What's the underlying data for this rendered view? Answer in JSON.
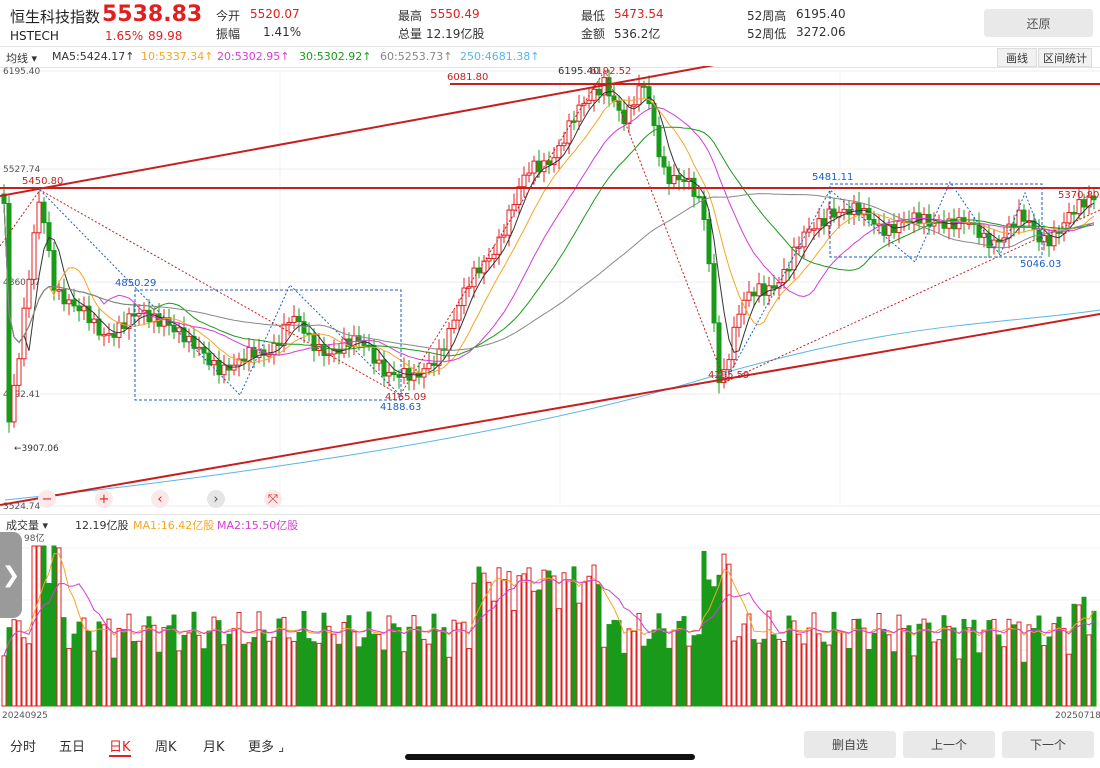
{
  "header": {
    "name": "恒生科技指数",
    "price": "5538.83",
    "code": "HSTECH",
    "change_pct": "1.65%",
    "change_val": "89.98",
    "stats": [
      {
        "label": "今开",
        "value": "5520.07",
        "color": "#e02020"
      },
      {
        "label": "最高",
        "value": "5550.49",
        "color": "#e02020"
      },
      {
        "label": "最低",
        "value": "5473.54",
        "color": "#e02020"
      },
      {
        "label": "52周高",
        "value": "6195.40",
        "color": "#333333"
      },
      {
        "label": "振幅",
        "value": "1.41%",
        "color": "#333333"
      },
      {
        "label": "总量",
        "value": "12.19亿股",
        "color": "#333333"
      },
      {
        "label": "金额",
        "value": "536.2亿",
        "color": "#333333"
      },
      {
        "label": "52周低",
        "value": "3272.06",
        "color": "#333333"
      }
    ],
    "restore_button": "还原"
  },
  "ma_bar": {
    "dropdown": "均线",
    "ma5": "MA5:5424.17↑",
    "ma10": "10:5337.34↑",
    "ma20": "20:5302.95↑",
    "ma30": "30:5302.92↑",
    "ma60": "60:5253.73↑",
    "ma250": "250:4681.38↑",
    "draw_button": "画线",
    "range_button": "区间统计"
  },
  "colors": {
    "up": "#e02020",
    "down": "#1a9a1a",
    "ma5": "#333333",
    "ma10": "#f5a623",
    "ma20": "#d63bd6",
    "ma30": "#1a9a1a",
    "ma60": "#888888",
    "ma250": "#5ab4e6",
    "annotation_blue": "#1a5fc8",
    "trendline": "#c81e1e"
  },
  "price_chart": {
    "y_labels": [
      "6195.40",
      "5527.74",
      "4860.07",
      "4192.41",
      "3524.74"
    ],
    "extreme_labels": {
      "high": "6195.40",
      "low_left": "3907.06"
    },
    "annotations": [
      "6081.80",
      "6195.40",
      "6192.52",
      "5450.80",
      "4850.29",
      "4165.09",
      "4188.63",
      "4295.59",
      "5481.11",
      "5046.03",
      "5370.80"
    ]
  },
  "volume_bar": {
    "dropdown": "成交量",
    "total": "12.19亿股",
    "ma1": "MA1:16.42亿股",
    "ma2": "MA2:15.50亿股",
    "y_label": "98亿"
  },
  "x_range": {
    "start": "20240925",
    "end": "20250718"
  },
  "controls": [
    "−",
    "+",
    "‹",
    "›",
    "⤧"
  ],
  "tabs": [
    "分时",
    "五日",
    "日K",
    "周K",
    "月K",
    "更多"
  ],
  "active_tab": "日K",
  "bottom_buttons": [
    "删自选",
    "上一个",
    "下一个"
  ],
  "side_handle": "❯"
}
